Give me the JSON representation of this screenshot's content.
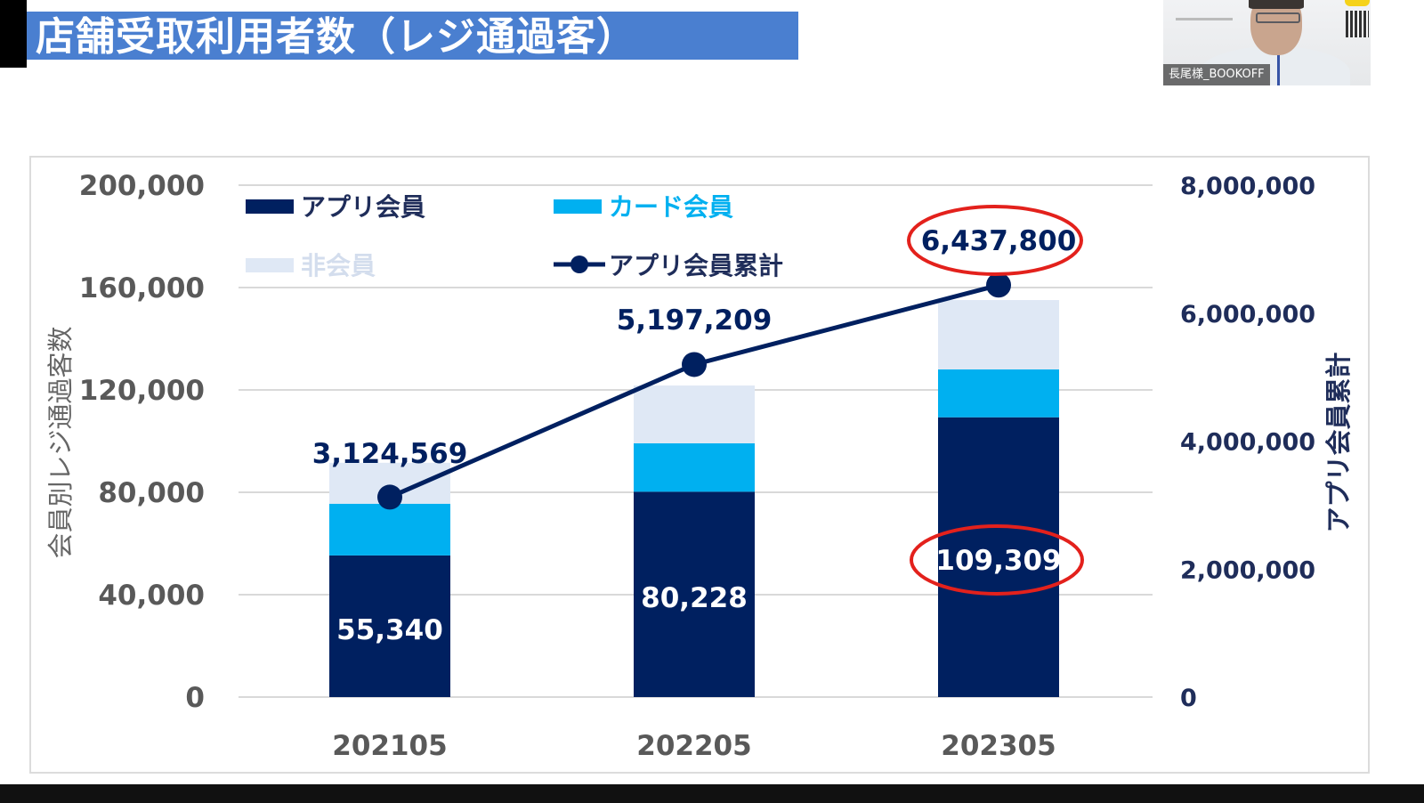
{
  "slide": {
    "title": "店舗受取利用者数（レジ通過客）",
    "title_bar_color": "#4a7fd0"
  },
  "video_tile": {
    "name_label": "長尾様_BOOKOFF"
  },
  "chart_data": {
    "type": "bar",
    "stacked": true,
    "title": "",
    "categories": [
      "202105",
      "202205",
      "202305"
    ],
    "series": [
      {
        "name": "アプリ会員",
        "type": "bar",
        "axis": "left",
        "color": "#002060",
        "values": [
          55340,
          80228,
          109309
        ],
        "labels": [
          "55,340",
          "80,228",
          "109,309"
        ]
      },
      {
        "name": "カード会員",
        "type": "bar",
        "axis": "left",
        "color": "#00b0f0",
        "values": [
          20200,
          18900,
          18700
        ]
      },
      {
        "name": "非会員",
        "type": "bar",
        "axis": "left",
        "color": "#dfe8f5",
        "values": [
          16000,
          22600,
          27100
        ]
      },
      {
        "name": "アプリ会員累計",
        "type": "line",
        "axis": "right",
        "color": "#002060",
        "values": [
          3124569,
          5197209,
          6437800
        ],
        "labels": [
          "3,124,569",
          "5,197,209",
          "6,437,800"
        ]
      }
    ],
    "xlabel": "",
    "ylabel": "会員別レジ通過客数",
    "y2label": "アプリ会員累計",
    "ylim": [
      0,
      200000
    ],
    "y2lim": [
      0,
      8000000
    ],
    "yticks": [
      "0",
      "40,000",
      "80,000",
      "120,000",
      "160,000",
      "200,000"
    ],
    "y2ticks": [
      "0",
      "2,000,000",
      "4,000,000",
      "6,000,000",
      "8,000,000"
    ],
    "grid": true,
    "legend_position": "top-inside",
    "annotations": [
      {
        "type": "red-ellipse",
        "target": "6,437,800"
      },
      {
        "type": "red-ellipse",
        "target": "109,309"
      }
    ]
  },
  "colors": {
    "axis_text_left": "#595959",
    "axis_text_right": "#1f2d5a",
    "highlight": "#e3211c",
    "grid": "#d9d9d9"
  }
}
